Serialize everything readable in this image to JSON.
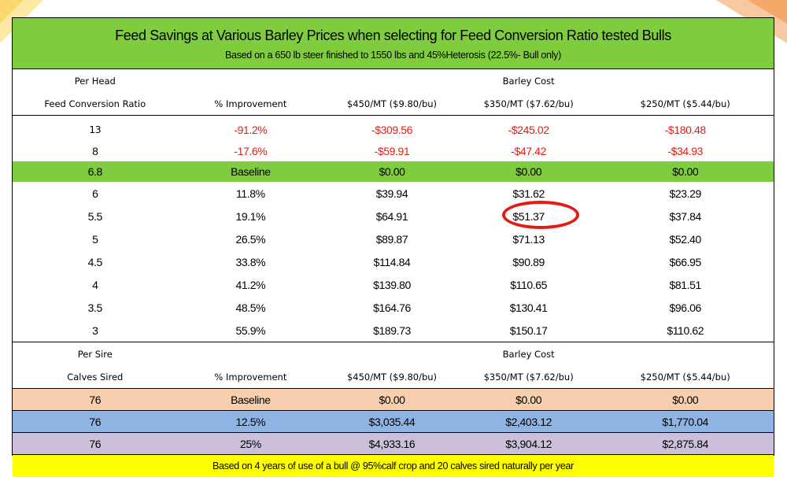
{
  "title": "Feed Savings at Various Barley Prices when selecting for Feed Conversion Ratio tested Bulls",
  "subtitle": "Based on a 650 lb steer finished to 1550 lbs and 45%Heterosis (22.5%- Bull only)",
  "footer": "Based on 4 years of use of a bull @ 95%calf crop and 20 calves sired naturally per year",
  "per_head": {
    "label": "Per Head",
    "barley_label": "Barley Cost",
    "headers": [
      "Feed Conversion Ratio",
      "% Improvement",
      "$450/MT ($9.80/bu)",
      "$350/MT ($7.62/bu)",
      "$250/MT ($5.44/bu)"
    ],
    "rows": [
      [
        "13",
        "-91.2%",
        "-$309.56",
        "-$245.02",
        "-$180.48"
      ],
      [
        "8",
        "-17.6%",
        "-$59.91",
        "-$47.42",
        "-$34.93"
      ],
      [
        "6.8",
        "Baseline",
        "$0.00",
        "$0.00",
        "$0.00"
      ],
      [
        "6",
        "11.8%",
        "$39.94",
        "$31.62",
        "$23.29"
      ],
      [
        "5.5",
        "19.1%",
        "$64.91",
        "$51.37",
        "$37.84"
      ],
      [
        "5",
        "26.5%",
        "$89.87",
        "$71.13",
        "$52.40"
      ],
      [
        "4.5",
        "33.8%",
        "$114.84",
        "$90.89",
        "$66.95"
      ],
      [
        "4",
        "41.2%",
        "$139.80",
        "$110.65",
        "$81.51"
      ],
      [
        "3.5",
        "48.5%",
        "$164.76",
        "$130.41",
        "$96.06"
      ],
      [
        "3",
        "55.9%",
        "$189.73",
        "$150.17",
        "$110.62"
      ]
    ]
  },
  "per_sire": {
    "label": "Per Sire",
    "barley_label": "Barley Cost",
    "headers": [
      "Calves Sired",
      "% Improvement",
      "$450/MT ($9.80/bu)",
      "$350/MT ($7.62/bu)",
      "$250/MT ($5.44/bu)"
    ],
    "rows": [
      [
        "76",
        "Baseline",
        "$0.00",
        "$0.00",
        "$0.00"
      ],
      [
        "76",
        "12.5%",
        "$3,035.44",
        "$2,403.12",
        "$1,770.04"
      ],
      [
        "76",
        "25%",
        "$4,933.16",
        "$3,904.12",
        "$2,875.84"
      ]
    ]
  },
  "colors": {
    "green": "#7fcd3e",
    "red": "#e41b13",
    "peach": "#f7cfae",
    "blue": "#8eb4e3",
    "lavender": "#cbbfdc",
    "yellow": "#ffff00"
  }
}
